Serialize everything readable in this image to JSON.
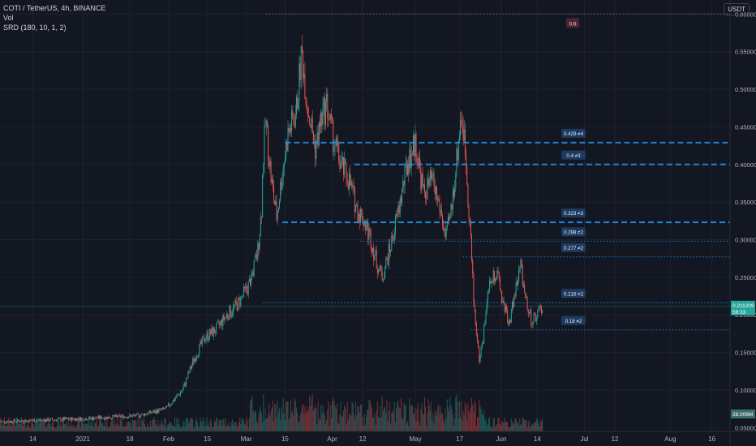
{
  "header": {
    "symbol_line": "COTI / TetherUS, 4h, BINANCE",
    "indicator_vol": "Vol",
    "indicator_srd": "SRD (180, 10, 1, 2)",
    "currency": "USDT"
  },
  "colors": {
    "background": "#131722",
    "up": "#26a69a",
    "down": "#ef5350",
    "level_line": "#2196f3",
    "label_bg": "#1e3a5f",
    "price_tag": "#26a69a"
  },
  "chart_data": {
    "type": "candlestick",
    "y_axis": {
      "min": 0.045,
      "max": 0.61,
      "ticks": [
        "0.60000",
        "0.55000",
        "0.50000",
        "0.45000",
        "0.40000",
        "0.35000",
        "0.30000",
        "0.25000",
        "0.20000",
        "0.15000",
        "0.10000",
        "0.05000"
      ],
      "tick_values": [
        0.6,
        0.55,
        0.5,
        0.45,
        0.4,
        0.35,
        0.3,
        0.25,
        0.2,
        0.15,
        0.1,
        0.05
      ]
    },
    "x_axis": {
      "ticks": [
        "14",
        "2021",
        "18",
        "Feb",
        "15",
        "Mar",
        "15",
        "Apr",
        "12",
        "May",
        "17",
        "Jun",
        "14",
        "Jul",
        "12",
        "Aug",
        "16"
      ],
      "tick_days": [
        -18,
        0,
        17,
        31,
        45,
        59,
        73,
        90,
        101,
        120,
        136,
        151,
        164,
        181,
        192,
        212,
        227
      ]
    },
    "last_price": "0.211209",
    "countdown": "59:33",
    "volume_tag": "28.006M",
    "top_label": "0.6",
    "top_label_value": 0.6,
    "levels": [
      {
        "label": "0.429 ≠4",
        "value": 0.429,
        "style": "dashed-bold",
        "start_day": 73
      },
      {
        "label": "0.4 ≠3",
        "value": 0.4,
        "style": "dashed-bold",
        "start_day": 98
      },
      {
        "label": "0.323 ≠3",
        "value": 0.323,
        "style": "dashed-bold",
        "start_day": 72
      },
      {
        "label": "0.298 ≠2",
        "value": 0.298,
        "style": "dotted",
        "start_day": 100
      },
      {
        "label": "0.277 ≠2",
        "value": 0.277,
        "style": "dotted",
        "start_day": 137
      },
      {
        "label": "0.216 ≠2",
        "value": 0.216,
        "style": "dotted",
        "start_day": 65
      },
      {
        "label": "0.18 ≠2",
        "value": 0.18,
        "style": "dotted",
        "start_day": 140
      }
    ],
    "price_path": [
      [
        -30,
        0.058
      ],
      [
        -15,
        0.06
      ],
      [
        0,
        0.062
      ],
      [
        10,
        0.064
      ],
      [
        20,
        0.066
      ],
      [
        30,
        0.075
      ],
      [
        36,
        0.1
      ],
      [
        40,
        0.14
      ],
      [
        44,
        0.17
      ],
      [
        48,
        0.18
      ],
      [
        52,
        0.2
      ],
      [
        56,
        0.215
      ],
      [
        60,
        0.24
      ],
      [
        63,
        0.28
      ],
      [
        64.5,
        0.34
      ],
      [
        65,
        0.4
      ],
      [
        66,
        0.46
      ],
      [
        68,
        0.38
      ],
      [
        70,
        0.33
      ],
      [
        72,
        0.39
      ],
      [
        74,
        0.44
      ],
      [
        77,
        0.47
      ],
      [
        79,
        0.55
      ],
      [
        81,
        0.48
      ],
      [
        84,
        0.42
      ],
      [
        86,
        0.46
      ],
      [
        88,
        0.48
      ],
      [
        90,
        0.44
      ],
      [
        93,
        0.4
      ],
      [
        96,
        0.38
      ],
      [
        99,
        0.34
      ],
      [
        101,
        0.33
      ],
      [
        104,
        0.3
      ],
      [
        106,
        0.27
      ],
      [
        108,
        0.25
      ],
      [
        111,
        0.29
      ],
      [
        114,
        0.34
      ],
      [
        117,
        0.4
      ],
      [
        120,
        0.43
      ],
      [
        123,
        0.36
      ],
      [
        126,
        0.38
      ],
      [
        129,
        0.34
      ],
      [
        131,
        0.3
      ],
      [
        133,
        0.34
      ],
      [
        135,
        0.41
      ],
      [
        136.5,
        0.47
      ],
      [
        138,
        0.42
      ],
      [
        140,
        0.3
      ],
      [
        141,
        0.22
      ],
      [
        142,
        0.18
      ],
      [
        143,
        0.14
      ],
      [
        144.5,
        0.17
      ],
      [
        146,
        0.23
      ],
      [
        149,
        0.26
      ],
      [
        152,
        0.21
      ],
      [
        154,
        0.19
      ],
      [
        156,
        0.23
      ],
      [
        158,
        0.265
      ],
      [
        160,
        0.22
      ],
      [
        162,
        0.19
      ],
      [
        164,
        0.2
      ],
      [
        166,
        0.211
      ]
    ]
  }
}
